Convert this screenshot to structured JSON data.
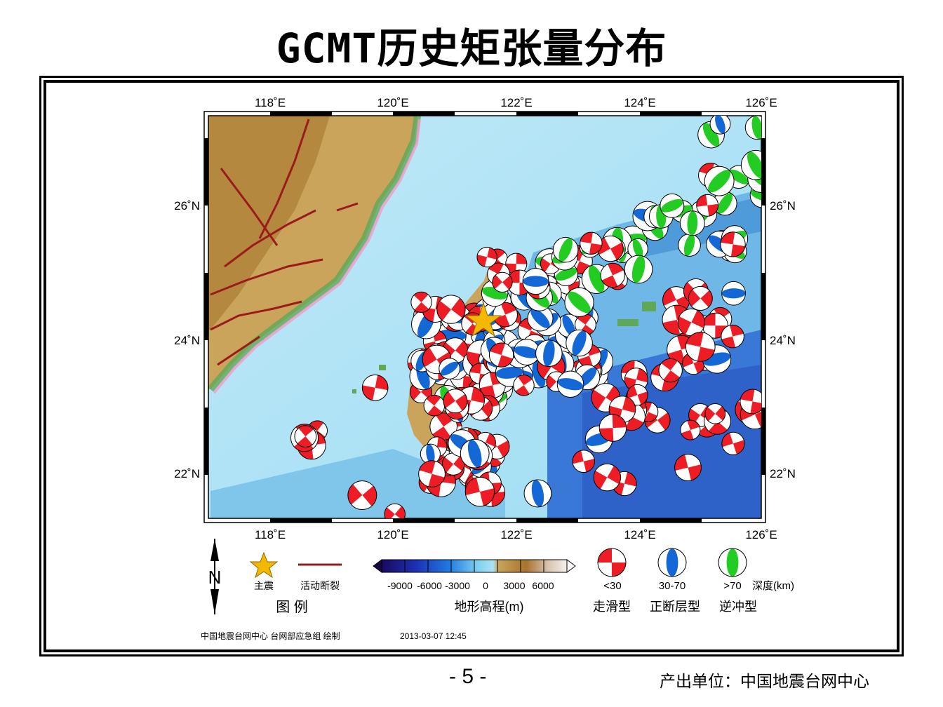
{
  "title": "GCMT历史矩张量分布",
  "map": {
    "lon_labels": [
      "118˚E",
      "120˚E",
      "122˚E",
      "124˚E",
      "126˚E"
    ],
    "lat_labels": [
      "26˚N",
      "24˚N",
      "22˚N"
    ],
    "mainshock_marker": "star-icon",
    "colors": {
      "strike_slip": "#ee1c25",
      "normal": "#1468d6",
      "thrust": "#22cc22",
      "mainshock": "#f5b800",
      "fault": "#9b1b1b"
    }
  },
  "legend": {
    "north": "N",
    "mainshock_label": "主震",
    "fault_label": "活动断裂",
    "legend_title": "图  例",
    "colorbar_ticks": [
      "-9000",
      "-6000",
      "-3000",
      "0",
      "3000",
      "6000"
    ],
    "colorbar_title": "地形高程(m)",
    "depth_labels": [
      "<30",
      "30-70",
      ">70"
    ],
    "depth_unit": "深度(km)",
    "mechanism_labels": [
      "走滑型",
      "正断层型",
      "逆冲型"
    ]
  },
  "credit": "中国地震台网中心 台网部应急组 绘制",
  "timestamp": "2013-03-07 12:45",
  "page_number": "- 5 -",
  "producer": "产出单位：中国地震台网中心"
}
